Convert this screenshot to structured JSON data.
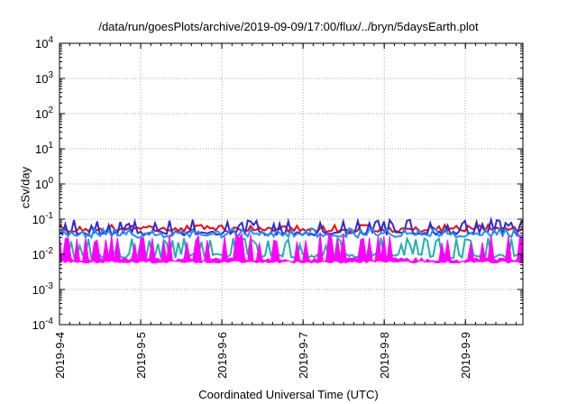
{
  "chart_data": {
    "type": "line",
    "title": "/data/run/goesPlots/archive/2019-09-09/17:00/flux/../bryn/5daysEarth.plot",
    "xlabel": "Coordinated Universal Time (UTC)",
    "ylabel": "cSv/day",
    "yscale": "log",
    "ylim": [
      0.0001,
      10000
    ],
    "xlim": [
      "2019-09-04",
      "2019-09-09T17:00"
    ],
    "grid": true,
    "x_ticks": [
      "2019-9-4",
      "2019-9-5",
      "2019-9-6",
      "2019-9-7",
      "2019-9-8",
      "2019-9-9"
    ],
    "y_ticks": [
      {
        "base": "10",
        "exp": "-4",
        "value": 0.0001
      },
      {
        "base": "10",
        "exp": "-3",
        "value": 0.001
      },
      {
        "base": "10",
        "exp": "-2",
        "value": 0.01
      },
      {
        "base": "10",
        "exp": "-1",
        "value": 0.1
      },
      {
        "base": "10",
        "exp": "0",
        "value": 1
      },
      {
        "base": "10",
        "exp": "1",
        "value": 10
      },
      {
        "base": "10",
        "exp": "2",
        "value": 100
      },
      {
        "base": "10",
        "exp": "3",
        "value": 1000
      },
      {
        "base": "10",
        "exp": "4",
        "value": 10000
      }
    ],
    "series": [
      {
        "color": "#ff0000",
        "style": "line",
        "baseline": 0.05,
        "spike": 0.07
      },
      {
        "color": "#2b2bd8",
        "style": "line",
        "baseline": 0.04,
        "spike": 0.1
      },
      {
        "color": "#1e90ff",
        "style": "line",
        "baseline": 0.035,
        "spike": 0.055
      },
      {
        "color": "#20b2aa",
        "style": "line",
        "baseline": 0.009,
        "spike": 0.03
      },
      {
        "color": "#ff00ff",
        "style": "fill",
        "baseline": 0.007,
        "spike": 0.04
      }
    ]
  }
}
